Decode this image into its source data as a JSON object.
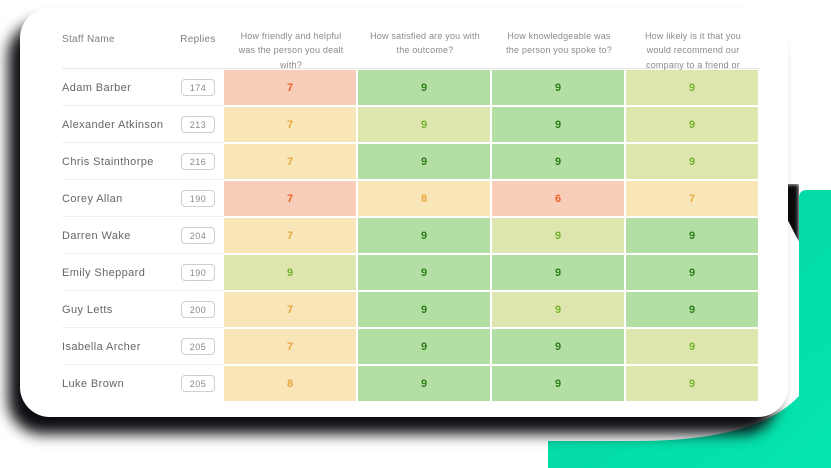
{
  "page": {
    "accent_teal_start": "#00d2a0",
    "accent_teal_end": "#06e5b0",
    "card_background": "#ffffff"
  },
  "score_colors": {
    "red": {
      "bg": "#f8cebb",
      "text": "#eb6027"
    },
    "yellow": {
      "bg": "#f8e5b8",
      "text": "#e9a63b"
    },
    "olive": {
      "bg": "#dfe5ae",
      "text": "#72b52b"
    },
    "green": {
      "bg": "#b4dfa4",
      "text": "#2f7d1b"
    }
  },
  "table": {
    "headers": [
      "Staff Name",
      "Replies",
      "How friendly and helpful was the person you dealt with?",
      "How satisfied are you with the outcome?",
      "How knowledgeable was the person you spoke to?",
      "How likely is it that you would recommend our company to a friend or colleague?"
    ],
    "rows": [
      {
        "name": "Adam Barber",
        "replies": "174",
        "scores": [
          {
            "value": "7",
            "level": "red"
          },
          {
            "value": "9",
            "level": "green"
          },
          {
            "value": "9",
            "level": "green"
          },
          {
            "value": "9",
            "level": "olive"
          }
        ]
      },
      {
        "name": "Alexander Atkinson",
        "replies": "213",
        "scores": [
          {
            "value": "7",
            "level": "yellow"
          },
          {
            "value": "9",
            "level": "olive"
          },
          {
            "value": "9",
            "level": "green"
          },
          {
            "value": "9",
            "level": "olive"
          }
        ]
      },
      {
        "name": "Chris Stainthorpe",
        "replies": "216",
        "scores": [
          {
            "value": "7",
            "level": "yellow"
          },
          {
            "value": "9",
            "level": "green"
          },
          {
            "value": "9",
            "level": "green"
          },
          {
            "value": "9",
            "level": "olive"
          }
        ]
      },
      {
        "name": "Corey Allan",
        "replies": "190",
        "scores": [
          {
            "value": "7",
            "level": "red"
          },
          {
            "value": "8",
            "level": "yellow"
          },
          {
            "value": "6",
            "level": "red"
          },
          {
            "value": "7",
            "level": "yellow"
          }
        ]
      },
      {
        "name": "Darren Wake",
        "replies": "204",
        "scores": [
          {
            "value": "7",
            "level": "yellow"
          },
          {
            "value": "9",
            "level": "green"
          },
          {
            "value": "9",
            "level": "olive"
          },
          {
            "value": "9",
            "level": "green"
          }
        ]
      },
      {
        "name": "Emily Sheppard",
        "replies": "190",
        "scores": [
          {
            "value": "9",
            "level": "olive"
          },
          {
            "value": "9",
            "level": "green"
          },
          {
            "value": "9",
            "level": "green"
          },
          {
            "value": "9",
            "level": "green"
          }
        ]
      },
      {
        "name": "Guy Letts",
        "replies": "200",
        "scores": [
          {
            "value": "7",
            "level": "yellow"
          },
          {
            "value": "9",
            "level": "green"
          },
          {
            "value": "9",
            "level": "olive"
          },
          {
            "value": "9",
            "level": "green"
          }
        ]
      },
      {
        "name": "Isabella Archer",
        "replies": "205",
        "scores": [
          {
            "value": "7",
            "level": "yellow"
          },
          {
            "value": "9",
            "level": "green"
          },
          {
            "value": "9",
            "level": "green"
          },
          {
            "value": "9",
            "level": "olive"
          }
        ]
      },
      {
        "name": "Luke Brown",
        "replies": "205",
        "scores": [
          {
            "value": "8",
            "level": "yellow"
          },
          {
            "value": "9",
            "level": "green"
          },
          {
            "value": "9",
            "level": "green"
          },
          {
            "value": "9",
            "level": "olive"
          }
        ]
      }
    ]
  }
}
